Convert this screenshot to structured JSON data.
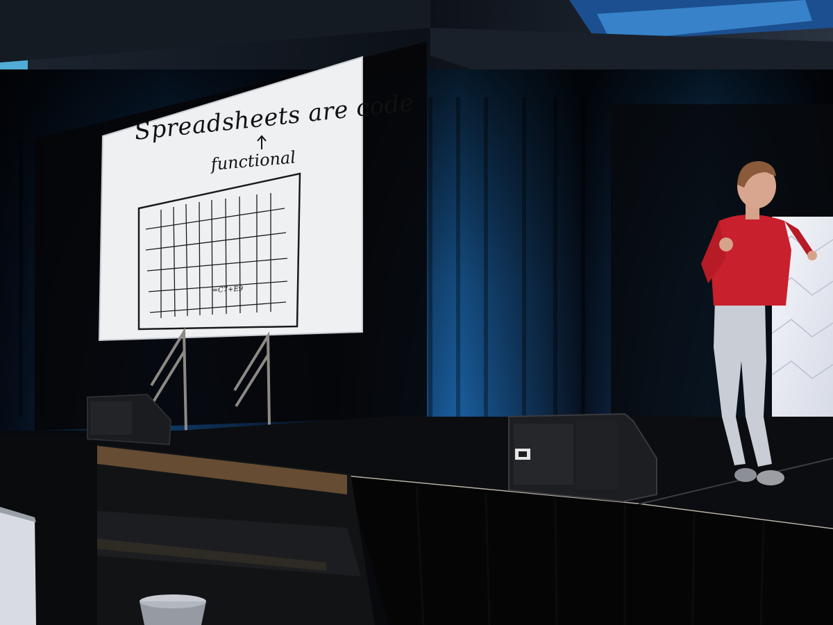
{
  "slide": {
    "title": "Spreadsheets are code",
    "insertion": "functional",
    "formula": "=C7+E9"
  },
  "colors": {
    "background": "#07090d",
    "curtain": "#0a1424",
    "curtain_light": "#1f6fb0",
    "screen": "#eef0f2",
    "stage": "#0c0d10",
    "sweater": "#c8202c",
    "jeans": "#c9cdd6"
  },
  "icons": {
    "arrow": "caret-up-arrow",
    "speaker_left": "stage-monitor-speaker",
    "speaker_right": "stage-monitor-speaker",
    "cup": "plastic-cup"
  }
}
